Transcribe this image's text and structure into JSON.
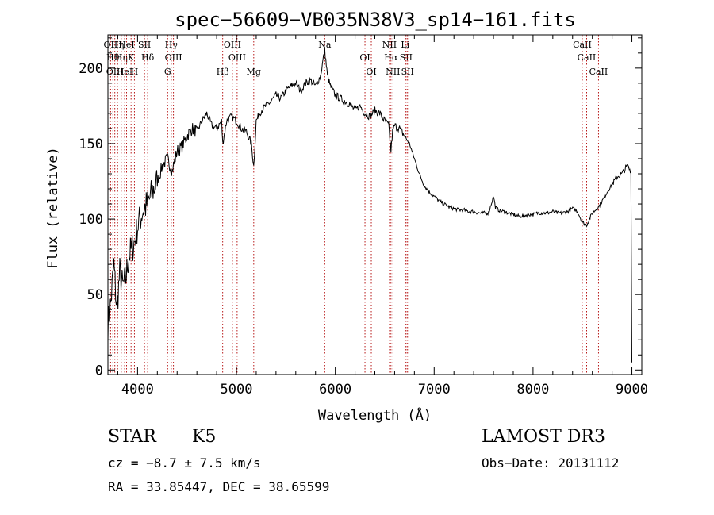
{
  "chart_data": {
    "type": "line",
    "title": "spec−56609−VB035N38V3_sp14−161.fits",
    "xlabel": "Wavelength (Å)",
    "ylabel": "Flux (relative)",
    "xlim": [
      3700,
      9100
    ],
    "ylim": [
      -3,
      222
    ],
    "xticks": [
      4000,
      5000,
      6000,
      7000,
      8000,
      9000
    ],
    "yticks": [
      0,
      50,
      100,
      150,
      200
    ],
    "grid": false,
    "series": [
      {
        "x": [
          3700,
          3730,
          3760,
          3790,
          3820,
          3850,
          3880,
          3910,
          3940,
          3970,
          4000,
          4050,
          4100,
          4150,
          4200,
          4250,
          4300,
          4350,
          4400,
          4450,
          4500,
          4550,
          4600,
          4650,
          4700,
          4750,
          4800,
          4850,
          4861,
          4900,
          4950,
          5000,
          5050,
          5100,
          5150,
          5175,
          5200,
          5250,
          5300,
          5350,
          5400,
          5450,
          5500,
          5550,
          5600,
          5650,
          5700,
          5750,
          5800,
          5850,
          5893,
          5920,
          5950,
          6000,
          6050,
          6100,
          6150,
          6200,
          6250,
          6300,
          6350,
          6400,
          6450,
          6500,
          6540,
          6563,
          6580,
          6600,
          6650,
          6700,
          6750,
          6800,
          6850,
          6900,
          6950,
          7000,
          7050,
          7100,
          7150,
          7200,
          7250,
          7300,
          7350,
          7400,
          7450,
          7500,
          7550,
          7600,
          7620,
          7650,
          7700,
          7750,
          7800,
          7850,
          7900,
          7950,
          8000,
          8050,
          8100,
          8150,
          8200,
          8250,
          8300,
          8350,
          8400,
          8450,
          8498,
          8542,
          8600,
          8662,
          8700,
          8750,
          8800,
          8850,
          8900,
          8950,
          8990,
          9000
        ],
        "y": [
          30,
          45,
          70,
          40,
          65,
          55,
          60,
          75,
          80,
          85,
          95,
          105,
          110,
          118,
          125,
          135,
          140,
          132,
          145,
          148,
          155,
          160,
          158,
          165,
          170,
          162,
          160,
          165,
          150,
          165,
          168,
          165,
          160,
          158,
          150,
          135,
          165,
          172,
          175,
          178,
          182,
          180,
          185,
          188,
          190,
          185,
          190,
          192,
          188,
          195,
          212,
          195,
          188,
          182,
          180,
          178,
          176,
          172,
          175,
          170,
          168,
          172,
          170,
          165,
          162,
          145,
          158,
          162,
          160,
          155,
          150,
          140,
          130,
          122,
          118,
          115,
          112,
          110,
          108,
          107,
          106,
          106,
          105,
          105,
          104,
          104,
          104,
          115,
          108,
          106,
          105,
          104,
          103,
          102,
          102,
          103,
          103,
          104,
          104,
          104,
          105,
          104,
          104,
          105,
          107,
          105,
          98,
          96,
          104,
          108,
          112,
          118,
          123,
          128,
          130,
          135,
          132,
          5
        ]
      }
    ],
    "lines": [
      {
        "x": 3727,
        "labels": [
          "OII"
        ]
      },
      {
        "x": 3750,
        "labels": [
          "Hθ"
        ]
      },
      {
        "x": 3770,
        "labels": [
          "OIII"
        ]
      },
      {
        "x": 3798,
        "labels": [
          "Hη"
        ]
      },
      {
        "x": 3835,
        "labels": [
          "Hη"
        ]
      },
      {
        "x": 3869,
        "labels": [
          "HeI"
        ]
      },
      {
        "x": 3889,
        "labels": [
          "HeI"
        ]
      },
      {
        "x": 3934,
        "labels": [
          "K"
        ]
      },
      {
        "x": 3968,
        "labels": [
          "H"
        ]
      },
      {
        "x": 4070,
        "labels": [
          "SII"
        ]
      },
      {
        "x": 4102,
        "labels": [
          "Hδ"
        ]
      },
      {
        "x": 4304,
        "labels": [
          "G"
        ]
      },
      {
        "x": 4341,
        "labels": [
          "Hγ"
        ]
      },
      {
        "x": 4363,
        "labels": [
          "OIII"
        ]
      },
      {
        "x": 4861,
        "labels": [
          "Hβ"
        ]
      },
      {
        "x": 4959,
        "labels": [
          "OIII"
        ]
      },
      {
        "x": 5007,
        "labels": [
          "OIII"
        ]
      },
      {
        "x": 5175,
        "labels": [
          "Mg"
        ]
      },
      {
        "x": 5893,
        "labels": [
          "Na"
        ]
      },
      {
        "x": 6300,
        "labels": [
          "OI"
        ]
      },
      {
        "x": 6364,
        "labels": [
          "OI"
        ]
      },
      {
        "x": 6548,
        "labels": [
          "NII"
        ]
      },
      {
        "x": 6563,
        "labels": [
          "Hα"
        ]
      },
      {
        "x": 6583,
        "labels": [
          "NII"
        ]
      },
      {
        "x": 6707,
        "labels": [
          "Li"
        ]
      },
      {
        "x": 6716,
        "labels": [
          "SII"
        ]
      },
      {
        "x": 6731,
        "labels": [
          "SII"
        ]
      },
      {
        "x": 8498,
        "labels": [
          "CaII"
        ]
      },
      {
        "x": 8542,
        "labels": [
          "CaII"
        ]
      },
      {
        "x": 8662,
        "labels": [
          "CaII"
        ]
      }
    ]
  },
  "info": {
    "class": "STAR",
    "subclass": "K5",
    "survey": "LAMOST DR3",
    "cz": "cz = −8.7 ± 7.5 km/s",
    "obs_date": "Obs−Date: 20131112",
    "radec": "RA =  33.85447, DEC =  38.65599"
  }
}
